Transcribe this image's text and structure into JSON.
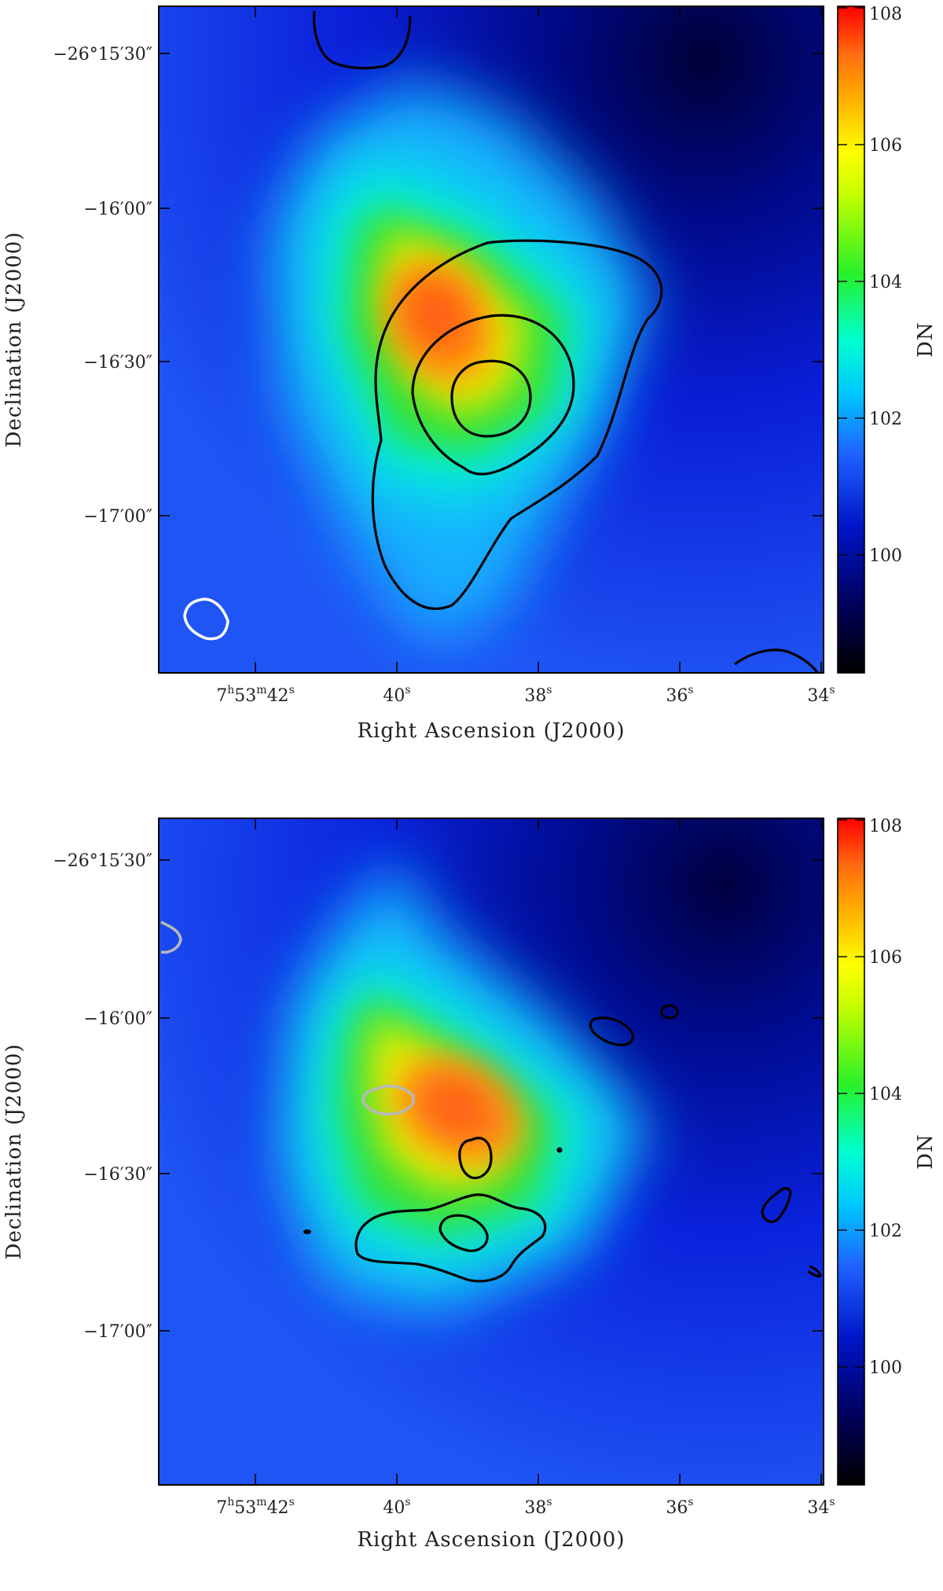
{
  "chart_data": [
    {
      "type": "heatmap",
      "panel": "top",
      "xlabel": "Right Ascension (J2000)",
      "ylabel": "Declination (J2000)",
      "x_ticks": [
        {
          "main": "7",
          "sup1": "h",
          "mid": "53",
          "sup2": "m",
          "tail": "42",
          "sup3": "s"
        },
        {
          "main": "40",
          "sup3": "s"
        },
        {
          "main": "38",
          "sup3": "s"
        },
        {
          "main": "36",
          "sup3": "s"
        },
        {
          "main": "34",
          "sup3": "s"
        }
      ],
      "y_ticks": [
        "−26°15′30″",
        "−16′00″",
        "−16′30″",
        "−17′00″"
      ],
      "colorbar": {
        "label": "DN",
        "ticks": [
          "108",
          "106",
          "104",
          "102",
          "100"
        ],
        "range": [
          98.2,
          108
        ]
      },
      "peak_value_dn": 107.5,
      "contours": "black contours around peak near 7h53m38.7s −26°16′37″; white contour at lower-left"
    },
    {
      "type": "heatmap",
      "panel": "bottom",
      "xlabel": "Right Ascension (J2000)",
      "ylabel": "Declination (J2000)",
      "x_ticks": [
        {
          "main": "7",
          "sup1": "h",
          "mid": "53",
          "sup2": "m",
          "tail": "42",
          "sup3": "s"
        },
        {
          "main": "40",
          "sup3": "s"
        },
        {
          "main": "38",
          "sup3": "s"
        },
        {
          "main": "36",
          "sup3": "s"
        },
        {
          "main": "34",
          "sup3": "s"
        }
      ],
      "y_ticks": [
        "−26°15′30″",
        "−16′00″",
        "−16′30″",
        "−17′00″"
      ],
      "colorbar": {
        "label": "DN",
        "ticks": [
          "108",
          "106",
          "104",
          "102",
          "100"
        ],
        "range": [
          98.2,
          108
        ]
      },
      "peak_value_dn": 107.0,
      "contours": "small black contours near peak and south of it; grey contours at left"
    }
  ]
}
